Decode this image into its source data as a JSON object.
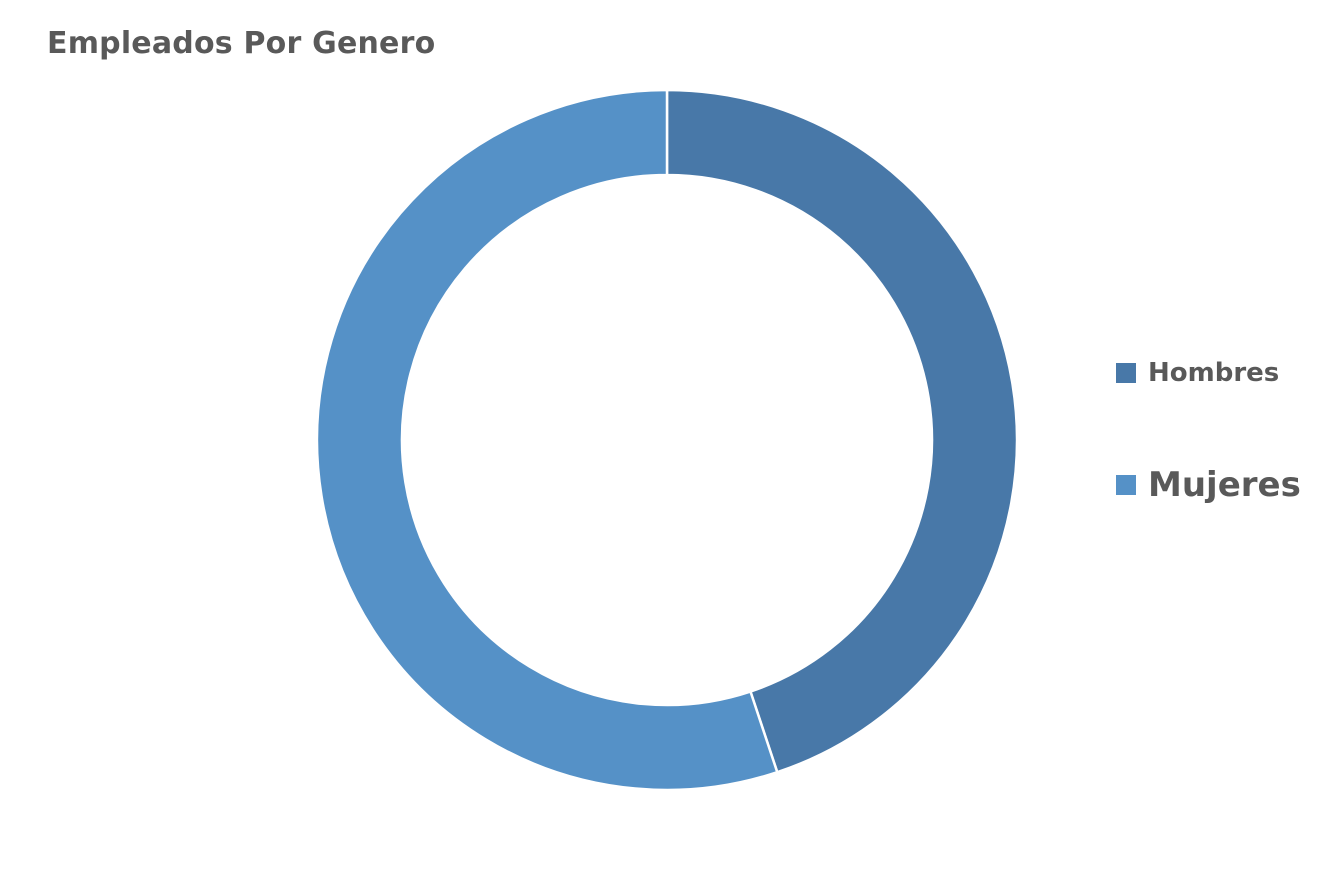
{
  "chart_data": {
    "type": "pie",
    "variant": "doughnut",
    "title": "Empleados Por Genero",
    "legend_position": "right",
    "categories": [
      "Hombres",
      "Mujeres"
    ],
    "values": [
      44.9,
      55.1
    ],
    "value_unit": "percent",
    "colors": [
      "#4878A8",
      "#5591C7"
    ],
    "start_angle_deg": 0,
    "direction": "clockwise",
    "legend": [
      {
        "label": "Hombres",
        "color": "#4878A8"
      },
      {
        "label": "Mujeres",
        "color": "#5591C7"
      }
    ]
  }
}
